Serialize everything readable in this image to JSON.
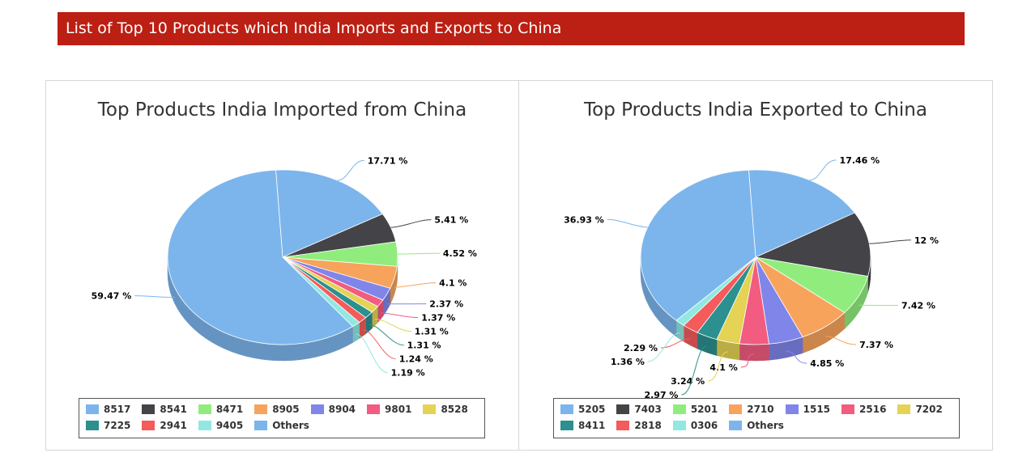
{
  "banner": {
    "title": "List of Top 10 Products which India Imports and Exports to China"
  },
  "chart_data": [
    {
      "type": "pie",
      "title": "Top Products India Imported from China",
      "legend_position": "bottom",
      "slices": [
        {
          "label": "8517",
          "value": 17.71,
          "text": "17.71 %",
          "color": "#7cb5ec"
        },
        {
          "label": "8541",
          "value": 5.41,
          "text": "5.41 %",
          "color": "#434348"
        },
        {
          "label": "8471",
          "value": 4.52,
          "text": "4.52 %",
          "color": "#90ed7d"
        },
        {
          "label": "8905",
          "value": 4.1,
          "text": "4.1 %",
          "color": "#f7a35c"
        },
        {
          "label": "8904",
          "value": 2.37,
          "text": "2.37 %",
          "color": "#8085e9"
        },
        {
          "label": "9801",
          "value": 1.37,
          "text": "1.37 %",
          "color": "#f15c80"
        },
        {
          "label": "8528",
          "value": 1.31,
          "text": "1.31 %",
          "color": "#e4d354"
        },
        {
          "label": "7225",
          "value": 1.31,
          "text": "1.31 %",
          "color": "#2b908f"
        },
        {
          "label": "2941",
          "value": 1.24,
          "text": "1.24 %",
          "color": "#f45b5b"
        },
        {
          "label": "9405",
          "value": 1.19,
          "text": "1.19 %",
          "color": "#91e8e1"
        },
        {
          "label": "Others",
          "value": 59.47,
          "text": "59.47 %",
          "color": "#7cb5ec"
        }
      ]
    },
    {
      "type": "pie",
      "title": "Top Products India Exported to China",
      "legend_position": "bottom",
      "slices": [
        {
          "label": "5205",
          "value": 17.46,
          "text": "17.46 %",
          "color": "#7cb5ec"
        },
        {
          "label": "7403",
          "value": 12,
          "text": "12 %",
          "color": "#434348"
        },
        {
          "label": "5201",
          "value": 7.42,
          "text": "7.42 %",
          "color": "#90ed7d"
        },
        {
          "label": "2710",
          "value": 7.37,
          "text": "7.37 %",
          "color": "#f7a35c"
        },
        {
          "label": "1515",
          "value": 4.85,
          "text": "4.85 %",
          "color": "#8085e9"
        },
        {
          "label": "2516",
          "value": 4.1,
          "text": "4.1 %",
          "color": "#f15c80"
        },
        {
          "label": "7202",
          "value": 3.24,
          "text": "3.24 %",
          "color": "#e4d354"
        },
        {
          "label": "8411",
          "value": 2.97,
          "text": "2.97 %",
          "color": "#2b908f"
        },
        {
          "label": "2818",
          "value": 2.29,
          "text": "2.29 %",
          "color": "#f45b5b"
        },
        {
          "label": "0306",
          "value": 1.36,
          "text": "1.36 %",
          "color": "#91e8e1"
        },
        {
          "label": "Others",
          "value": 36.93,
          "text": "36.93 %",
          "color": "#7cb5ec"
        }
      ]
    }
  ]
}
